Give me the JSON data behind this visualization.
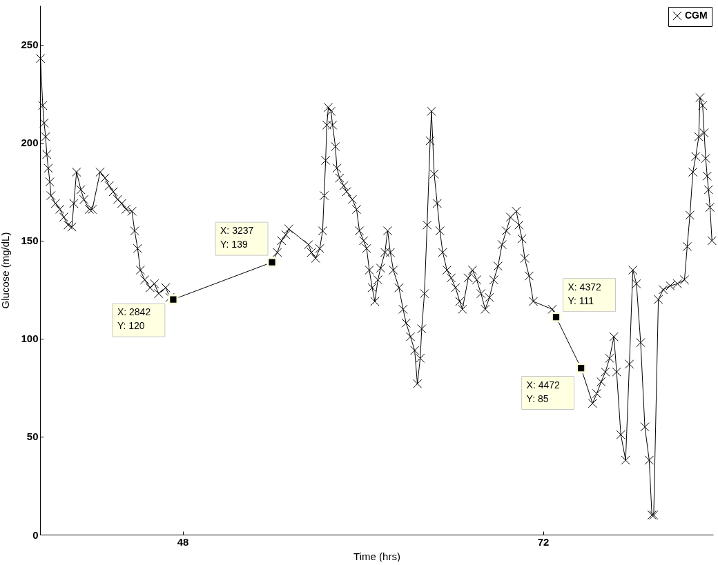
{
  "chart_data": {
    "type": "line",
    "xlabel": "Time (hrs)",
    "ylabel": "Glucose (mg/dL)",
    "xlim": [
      38.5,
      83.33
    ],
    "ylim": [
      0,
      270
    ],
    "xticks": [
      48,
      72
    ],
    "yticks": [
      0,
      50,
      100,
      150,
      200,
      250
    ],
    "grid": false,
    "legend": "top right",
    "marker": "cross",
    "line_style": "solid",
    "series": [
      {
        "name": "CGM",
        "color": "#000000",
        "x": [
          38.53,
          38.68,
          38.77,
          38.87,
          38.95,
          39.05,
          39.15,
          39.23,
          39.53,
          39.82,
          40.08,
          40.37,
          40.62,
          40.75,
          40.93,
          41.22,
          41.42,
          41.78,
          41.98,
          42.5,
          42.82,
          43.1,
          43.38,
          43.67,
          43.95,
          44.23,
          44.62,
          44.8,
          45,
          45.18,
          45.47,
          45.83,
          46.12,
          46.4,
          46.87,
          47.15,
          47.37,
          53.95,
          54.3,
          54.58,
          54.87,
          55.07,
          56.38,
          56.57,
          56.85,
          57.13,
          57.32,
          57.42,
          57.52,
          57.6,
          57.7,
          57.88,
          57.98,
          58.17,
          58.27,
          58.45,
          58.73,
          58.92,
          59.3,
          59.58,
          59.77,
          60.05,
          60.25,
          60.43,
          60.62,
          60.8,
          61,
          61.18,
          61.47,
          61.65,
          61.83,
          62.03,
          62.4,
          62.68,
          62.88,
          63.17,
          63.45,
          63.63,
          63.82,
          63.92,
          64.1,
          64.28,
          64.48,
          64.57,
          64.75,
          64.95,
          65.13,
          65.32,
          65.6,
          65.88,
          66.17,
          66.45,
          66.63,
          67.02,
          67.3,
          67.58,
          67.87,
          68.15,
          68.43,
          68.72,
          69,
          69.27,
          69.55,
          69.83,
          70.22,
          70.4,
          70.6,
          70.78,
          71.07,
          71.35,
          72.62,
          72.87,
          74.53,
          75.3,
          75.58,
          75.87,
          76.15,
          76.43,
          76.72,
          76.9,
          77.18,
          77.5,
          77.75,
          77.98,
          78.22,
          78.5,
          78.78,
          79.07,
          79.25,
          79.37,
          79.68,
          80,
          80.47,
          80.95,
          81.42,
          81.6,
          81.78,
          81.98,
          82.17,
          82.37,
          82.45,
          82.63,
          82.73,
          82.83,
          82.93,
          83.02,
          83.12,
          83.25
        ],
        "values": [
          243,
          219,
          210,
          203,
          194,
          187,
          180,
          173,
          169,
          166,
          162,
          158,
          157,
          169,
          185,
          176,
          171,
          166,
          166,
          185,
          182,
          178,
          175,
          171,
          169,
          166,
          165,
          155,
          146,
          135,
          130,
          126,
          128,
          123,
          126,
          121,
          120,
          139,
          144,
          150,
          153,
          156,
          148,
          144,
          141,
          146,
          155,
          173,
          191,
          209,
          218,
          216,
          209,
          198,
          187,
          182,
          178,
          175,
          171,
          166,
          155,
          150,
          146,
          135,
          126,
          119,
          130,
          136,
          144,
          155,
          144,
          135,
          126,
          115,
          108,
          101,
          94,
          77,
          90,
          105,
          123,
          158,
          201,
          216,
          184,
          169,
          155,
          144,
          135,
          131,
          126,
          119,
          115,
          131,
          135,
          130,
          123,
          115,
          121,
          130,
          137,
          148,
          155,
          162,
          165,
          158,
          151,
          141,
          132,
          119,
          115,
          111,
          85,
          67,
          72,
          78,
          83,
          90,
          101,
          83,
          51,
          38,
          87,
          135,
          128,
          98,
          55,
          38,
          10,
          10,
          120,
          125,
          127,
          128,
          130,
          147,
          163,
          185,
          193,
          203,
          223,
          219,
          205,
          192,
          183,
          176,
          167,
          150
        ]
      }
    ],
    "annotations": [
      {
        "text": "X: 2842\nY: 120",
        "x": 47.37,
        "y": 120
      },
      {
        "text": "X: 3237\nY: 139",
        "x": 53.95,
        "y": 139
      },
      {
        "text": "X: 4372\nY: 111",
        "x": 72.87,
        "y": 111
      },
      {
        "text": "X: 4472\nY: 85",
        "x": 74.53,
        "y": 85
      }
    ]
  }
}
